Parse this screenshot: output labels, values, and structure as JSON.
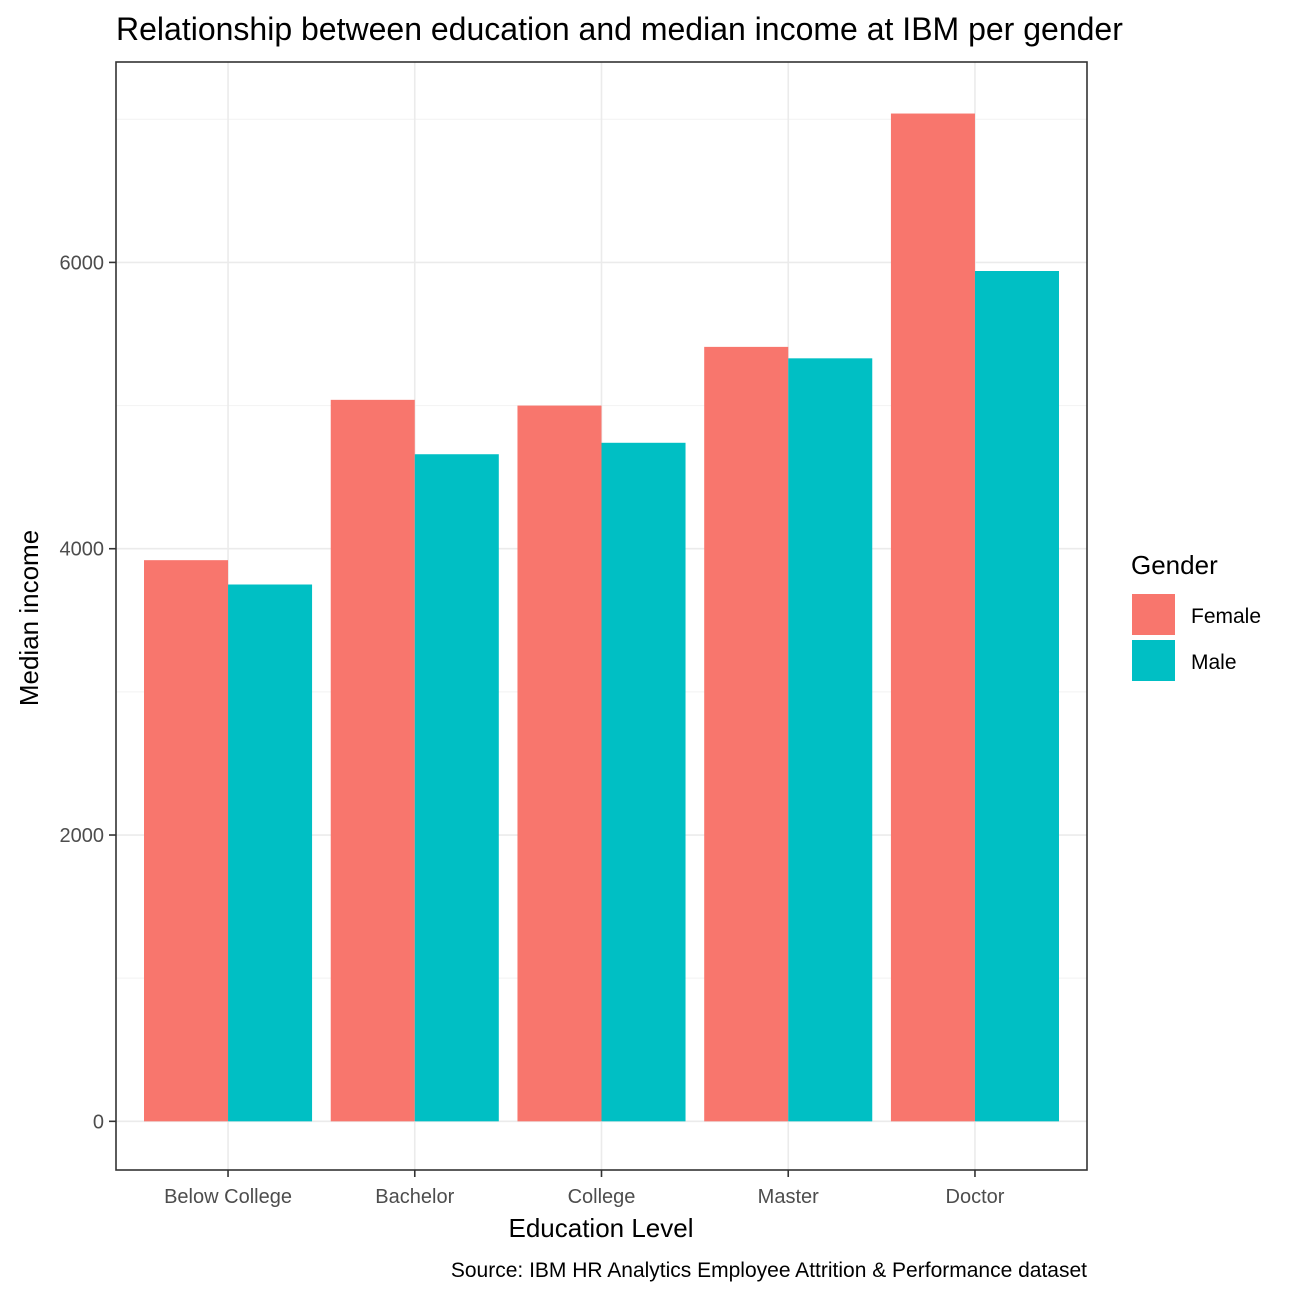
{
  "chart_data": {
    "type": "bar",
    "title": "Relationship between education and median income at IBM per gender",
    "xlabel": "Education Level",
    "ylabel": "Median income",
    "caption": "Source: IBM HR Analytics Employee Attrition & Performance dataset",
    "categories": [
      "Below College",
      "Bachelor",
      "College",
      "Master",
      "Doctor"
    ],
    "series": [
      {
        "name": "Female",
        "color": "#F8766D",
        "values": [
          3920,
          5040,
          5000,
          5410,
          7040
        ]
      },
      {
        "name": "Male",
        "color": "#00BFC4",
        "values": [
          3750,
          4660,
          4740,
          5330,
          5940
        ]
      }
    ],
    "ylim": [
      -340,
      7400
    ],
    "yticks": [
      0,
      2000,
      4000,
      6000
    ],
    "grid": true,
    "legend": {
      "title": "Gender",
      "position": "right"
    }
  }
}
